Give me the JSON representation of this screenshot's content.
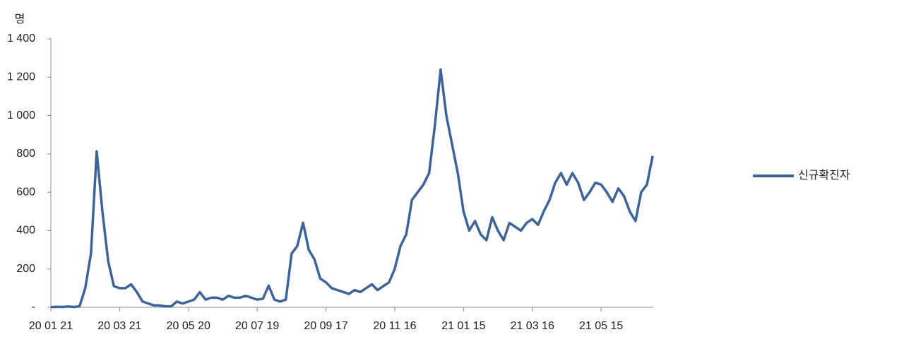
{
  "chart_data": {
    "type": "line",
    "y_label": "명",
    "categories": [
      "20 01 21",
      null,
      null,
      null,
      null,
      null,
      null,
      null,
      null,
      null,
      null,
      null,
      "20 03 21",
      null,
      null,
      null,
      null,
      null,
      null,
      null,
      null,
      null,
      null,
      null,
      "20 05 20",
      null,
      null,
      null,
      null,
      null,
      null,
      null,
      null,
      null,
      null,
      null,
      "20 07 19",
      null,
      null,
      null,
      null,
      null,
      null,
      null,
      null,
      null,
      null,
      null,
      "20 09 17",
      null,
      null,
      null,
      null,
      null,
      null,
      null,
      null,
      null,
      null,
      null,
      "20 11 16",
      null,
      null,
      null,
      null,
      null,
      null,
      null,
      null,
      null,
      null,
      null,
      "21 01 15",
      null,
      null,
      null,
      null,
      null,
      null,
      null,
      null,
      null,
      null,
      null,
      "21 03 16",
      null,
      null,
      null,
      null,
      null,
      null,
      null,
      null,
      null,
      null,
      null,
      "21 05 15",
      null,
      null,
      null,
      null,
      null,
      null,
      null,
      null,
      null
    ],
    "series": [
      {
        "name": "신규확진자",
        "color": "#3c6499",
        "values": [
          1,
          3,
          2,
          4,
          2,
          5,
          100,
          280,
          813,
          500,
          240,
          110,
          100,
          100,
          120,
          80,
          30,
          20,
          10,
          10,
          5,
          5,
          30,
          20,
          30,
          40,
          79,
          40,
          50,
          50,
          40,
          60,
          50,
          50,
          60,
          50,
          40,
          45,
          113,
          40,
          30,
          40,
          280,
          320,
          441,
          300,
          250,
          150,
          130,
          100,
          90,
          80,
          70,
          90,
          80,
          100,
          120,
          90,
          110,
          130,
          200,
          320,
          380,
          560,
          600,
          640,
          700,
          950,
          1240,
          1000,
          850,
          700,
          500,
          400,
          450,
          380,
          350,
          470,
          400,
          350,
          440,
          420,
          400,
          440,
          460,
          430,
          500,
          560,
          650,
          700,
          640,
          700,
          650,
          560,
          600,
          650,
          640,
          600,
          550,
          620,
          580,
          500,
          450,
          600,
          640,
          790
        ]
      }
    ],
    "ylim": [
      0,
      1400
    ],
    "yticks": [
      {
        "value": 0,
        "label": "-"
      },
      200,
      400,
      600,
      800,
      {
        "value": 1000,
        "label": "1 000"
      },
      {
        "value": 1200,
        "label": "1 200"
      },
      {
        "value": 1400,
        "label": "1 400"
      }
    ],
    "legend": "right"
  }
}
